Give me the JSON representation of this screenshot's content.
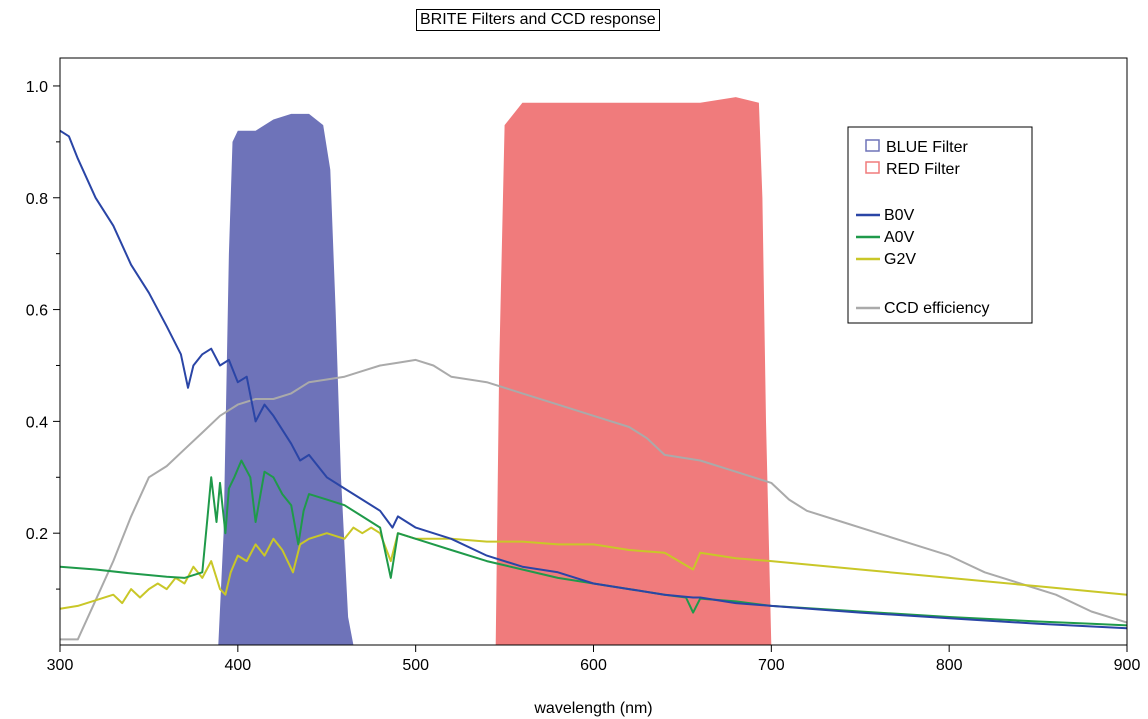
{
  "chart_data": {
    "type": "line",
    "title": "BRITE Filters and CCD response",
    "xlabel": "wavelength (nm)",
    "ylabel": "",
    "xlim": [
      300,
      900
    ],
    "ylim": [
      0,
      1.05
    ],
    "x_ticks": [
      "300",
      "400",
      "500",
      "600",
      "700",
      "800",
      "900"
    ],
    "y_ticks": [
      "0.2",
      "0.4",
      "0.6",
      "0.8",
      "1.0"
    ],
    "grid": false,
    "legend_position": "top-right",
    "colors": {
      "blue_filter": "#6e73b9",
      "red_filter": "#f07b7c",
      "B0V": "#2a45a6",
      "A0V": "#1f9a4a",
      "G2V": "#c9c728",
      "CCD": "#aaaaaa"
    },
    "filters": [
      {
        "name": "BLUE Filter",
        "points": [
          [
            389,
            0
          ],
          [
            392,
            0.2
          ],
          [
            395,
            0.7
          ],
          [
            397,
            0.9
          ],
          [
            400,
            0.92
          ],
          [
            410,
            0.92
          ],
          [
            420,
            0.94
          ],
          [
            430,
            0.95
          ],
          [
            440,
            0.95
          ],
          [
            448,
            0.93
          ],
          [
            452,
            0.85
          ],
          [
            455,
            0.6
          ],
          [
            458,
            0.3
          ],
          [
            462,
            0.05
          ],
          [
            465,
            0
          ]
        ]
      },
      {
        "name": "RED Filter",
        "points": [
          [
            545,
            0
          ],
          [
            547,
            0.5
          ],
          [
            550,
            0.93
          ],
          [
            560,
            0.97
          ],
          [
            580,
            0.97
          ],
          [
            600,
            0.97
          ],
          [
            620,
            0.97
          ],
          [
            640,
            0.97
          ],
          [
            660,
            0.97
          ],
          [
            680,
            0.98
          ],
          [
            693,
            0.97
          ],
          [
            695,
            0.8
          ],
          [
            697,
            0.4
          ],
          [
            700,
            0
          ]
        ]
      }
    ],
    "series": [
      {
        "name": "B0V",
        "points": [
          [
            300,
            0.92
          ],
          [
            305,
            0.91
          ],
          [
            310,
            0.87
          ],
          [
            320,
            0.8
          ],
          [
            330,
            0.75
          ],
          [
            340,
            0.68
          ],
          [
            350,
            0.63
          ],
          [
            360,
            0.57
          ],
          [
            368,
            0.52
          ],
          [
            372,
            0.46
          ],
          [
            375,
            0.5
          ],
          [
            380,
            0.52
          ],
          [
            385,
            0.53
          ],
          [
            390,
            0.5
          ],
          [
            395,
            0.51
          ],
          [
            400,
            0.47
          ],
          [
            405,
            0.48
          ],
          [
            410,
            0.4
          ],
          [
            415,
            0.43
          ],
          [
            420,
            0.41
          ],
          [
            430,
            0.36
          ],
          [
            435,
            0.33
          ],
          [
            440,
            0.34
          ],
          [
            450,
            0.3
          ],
          [
            460,
            0.28
          ],
          [
            470,
            0.26
          ],
          [
            480,
            0.24
          ],
          [
            487,
            0.21
          ],
          [
            490,
            0.23
          ],
          [
            500,
            0.21
          ],
          [
            520,
            0.19
          ],
          [
            540,
            0.16
          ],
          [
            560,
            0.14
          ],
          [
            580,
            0.13
          ],
          [
            600,
            0.11
          ],
          [
            620,
            0.1
          ],
          [
            640,
            0.09
          ],
          [
            656,
            0.085
          ],
          [
            660,
            0.085
          ],
          [
            680,
            0.075
          ],
          [
            700,
            0.07
          ],
          [
            750,
            0.058
          ],
          [
            800,
            0.048
          ],
          [
            850,
            0.038
          ],
          [
            900,
            0.03
          ]
        ]
      },
      {
        "name": "A0V",
        "points": [
          [
            300,
            0.14
          ],
          [
            320,
            0.135
          ],
          [
            340,
            0.128
          ],
          [
            360,
            0.122
          ],
          [
            370,
            0.12
          ],
          [
            380,
            0.13
          ],
          [
            383,
            0.23
          ],
          [
            385,
            0.3
          ],
          [
            388,
            0.22
          ],
          [
            390,
            0.29
          ],
          [
            393,
            0.2
          ],
          [
            395,
            0.28
          ],
          [
            398,
            0.3
          ],
          [
            402,
            0.33
          ],
          [
            407,
            0.3
          ],
          [
            410,
            0.22
          ],
          [
            415,
            0.31
          ],
          [
            420,
            0.3
          ],
          [
            425,
            0.27
          ],
          [
            430,
            0.25
          ],
          [
            434,
            0.18
          ],
          [
            437,
            0.24
          ],
          [
            440,
            0.27
          ],
          [
            450,
            0.26
          ],
          [
            460,
            0.25
          ],
          [
            470,
            0.23
          ],
          [
            480,
            0.21
          ],
          [
            486,
            0.12
          ],
          [
            490,
            0.2
          ],
          [
            500,
            0.19
          ],
          [
            520,
            0.17
          ],
          [
            540,
            0.15
          ],
          [
            560,
            0.135
          ],
          [
            580,
            0.12
          ],
          [
            600,
            0.11
          ],
          [
            620,
            0.1
          ],
          [
            640,
            0.09
          ],
          [
            652,
            0.085
          ],
          [
            656,
            0.058
          ],
          [
            660,
            0.083
          ],
          [
            680,
            0.078
          ],
          [
            700,
            0.07
          ],
          [
            750,
            0.06
          ],
          [
            800,
            0.05
          ],
          [
            850,
            0.042
          ],
          [
            880,
            0.038
          ],
          [
            900,
            0.035
          ]
        ]
      },
      {
        "name": "G2V",
        "points": [
          [
            300,
            0.065
          ],
          [
            310,
            0.07
          ],
          [
            320,
            0.08
          ],
          [
            330,
            0.09
          ],
          [
            335,
            0.075
          ],
          [
            340,
            0.1
          ],
          [
            345,
            0.085
          ],
          [
            350,
            0.1
          ],
          [
            355,
            0.11
          ],
          [
            360,
            0.1
          ],
          [
            365,
            0.12
          ],
          [
            370,
            0.11
          ],
          [
            375,
            0.14
          ],
          [
            380,
            0.12
          ],
          [
            385,
            0.15
          ],
          [
            390,
            0.1
          ],
          [
            393,
            0.09
          ],
          [
            396,
            0.13
          ],
          [
            400,
            0.16
          ],
          [
            405,
            0.15
          ],
          [
            410,
            0.18
          ],
          [
            415,
            0.16
          ],
          [
            420,
            0.19
          ],
          [
            425,
            0.17
          ],
          [
            431,
            0.13
          ],
          [
            435,
            0.18
          ],
          [
            440,
            0.19
          ],
          [
            450,
            0.2
          ],
          [
            460,
            0.19
          ],
          [
            465,
            0.21
          ],
          [
            470,
            0.2
          ],
          [
            475,
            0.21
          ],
          [
            480,
            0.2
          ],
          [
            486,
            0.15
          ],
          [
            490,
            0.2
          ],
          [
            500,
            0.19
          ],
          [
            520,
            0.19
          ],
          [
            540,
            0.185
          ],
          [
            560,
            0.185
          ],
          [
            580,
            0.18
          ],
          [
            600,
            0.18
          ],
          [
            620,
            0.17
          ],
          [
            640,
            0.165
          ],
          [
            656,
            0.135
          ],
          [
            660,
            0.165
          ],
          [
            680,
            0.155
          ],
          [
            700,
            0.15
          ],
          [
            750,
            0.135
          ],
          [
            800,
            0.12
          ],
          [
            850,
            0.105
          ],
          [
            900,
            0.09
          ]
        ]
      },
      {
        "name": "CCD efficiency",
        "points": [
          [
            300,
            0.01
          ],
          [
            310,
            0.01
          ],
          [
            320,
            0.08
          ],
          [
            330,
            0.15
          ],
          [
            340,
            0.23
          ],
          [
            350,
            0.3
          ],
          [
            360,
            0.32
          ],
          [
            370,
            0.35
          ],
          [
            380,
            0.38
          ],
          [
            390,
            0.41
          ],
          [
            400,
            0.43
          ],
          [
            410,
            0.44
          ],
          [
            420,
            0.44
          ],
          [
            430,
            0.45
          ],
          [
            440,
            0.47
          ],
          [
            450,
            0.475
          ],
          [
            460,
            0.48
          ],
          [
            470,
            0.49
          ],
          [
            480,
            0.5
          ],
          [
            490,
            0.505
          ],
          [
            500,
            0.51
          ],
          [
            510,
            0.5
          ],
          [
            520,
            0.48
          ],
          [
            540,
            0.47
          ],
          [
            560,
            0.45
          ],
          [
            580,
            0.43
          ],
          [
            600,
            0.41
          ],
          [
            620,
            0.39
          ],
          [
            630,
            0.37
          ],
          [
            640,
            0.34
          ],
          [
            660,
            0.33
          ],
          [
            680,
            0.31
          ],
          [
            700,
            0.29
          ],
          [
            710,
            0.26
          ],
          [
            720,
            0.24
          ],
          [
            740,
            0.22
          ],
          [
            760,
            0.2
          ],
          [
            780,
            0.18
          ],
          [
            800,
            0.16
          ],
          [
            820,
            0.13
          ],
          [
            840,
            0.11
          ],
          [
            860,
            0.09
          ],
          [
            880,
            0.06
          ],
          [
            900,
            0.04
          ]
        ]
      }
    ],
    "legend": {
      "filters": [
        "BLUE Filter",
        "RED Filter"
      ],
      "lines": [
        "B0V",
        "A0V",
        "G2V"
      ],
      "extra": [
        "CCD efficiency"
      ]
    }
  }
}
